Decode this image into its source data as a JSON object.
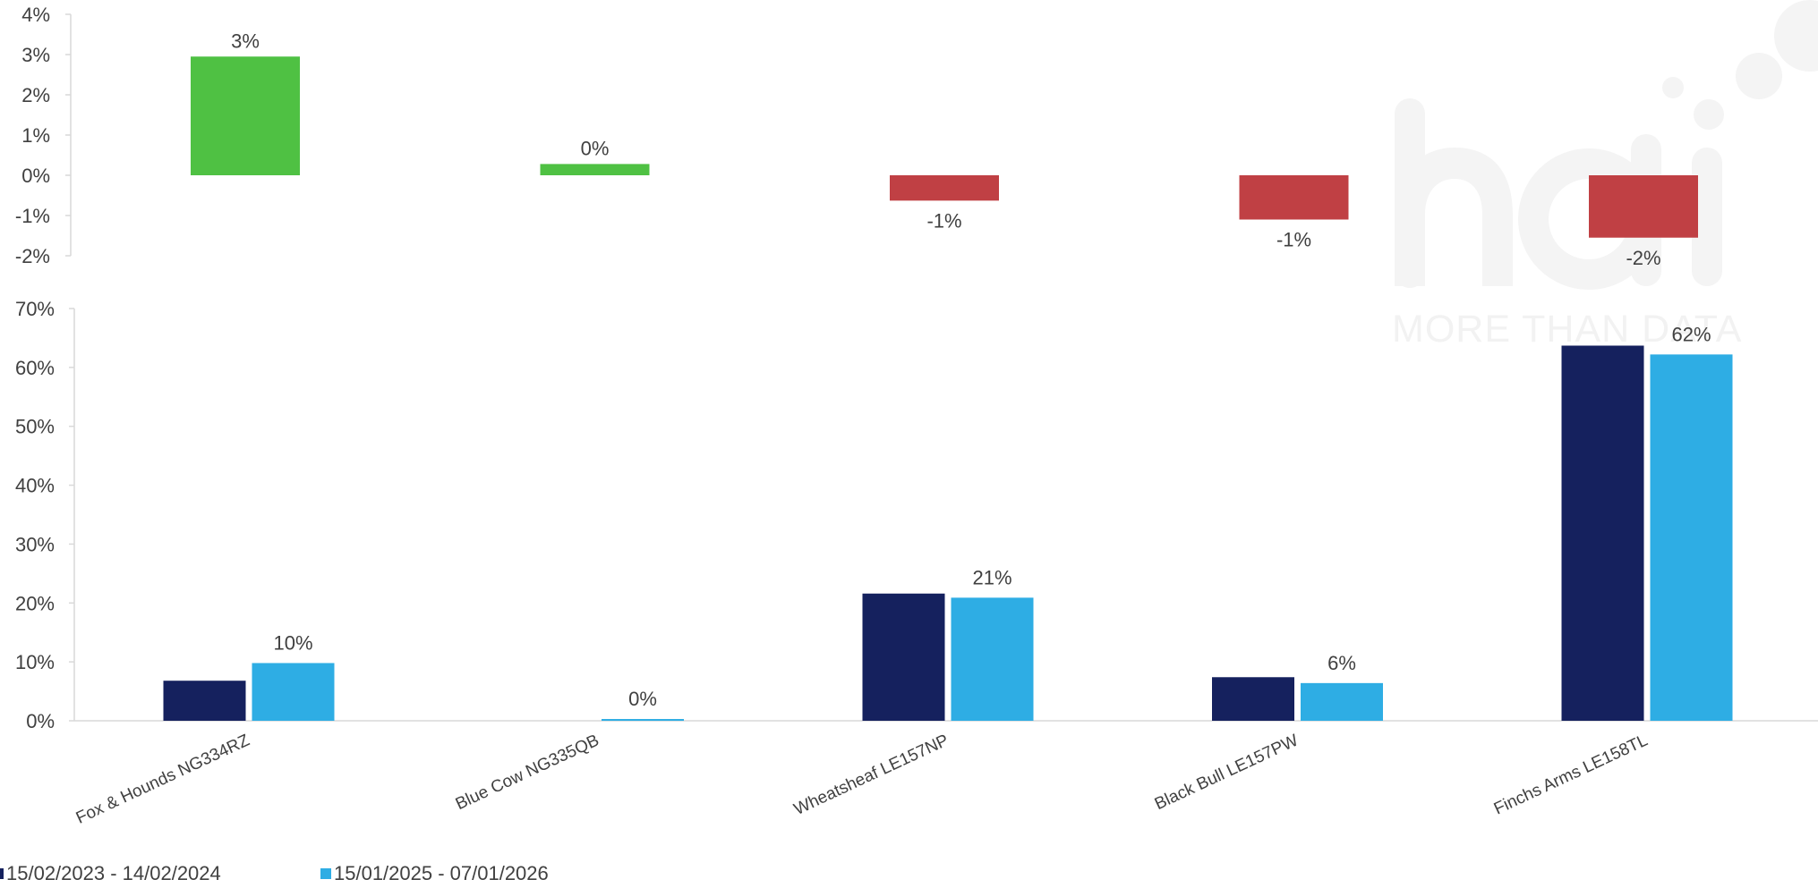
{
  "colors": {
    "positive": "#4fc143",
    "negative": "#c04044",
    "series1": "#15215e",
    "series2": "#2eade4",
    "axis": "#d9d9d9",
    "watermark": "#f4f4f4"
  },
  "watermark": {
    "logo_text": "hdi",
    "tagline": "MORE THAN DATA"
  },
  "chart_data": [
    {
      "type": "bar",
      "categories": [
        "Fox & Hounds NG334RZ",
        "Blue Cow NG335QB",
        "Wheatsheaf LE157NP",
        "Black Bull LE157PW",
        "Finchs Arms LE158TL"
      ],
      "values": [
        0.0295,
        0.0028,
        -0.0063,
        -0.011,
        -0.0155
      ],
      "data_labels": [
        "3%",
        "0%",
        "-1%",
        "-1%",
        "-2%"
      ],
      "ylim": [
        -0.02,
        0.04
      ],
      "yticks": [
        -0.02,
        -0.01,
        0,
        0.01,
        0.02,
        0.03,
        0.04
      ],
      "ytick_labels": [
        "-2%",
        "-1%",
        "0%",
        "1%",
        "2%",
        "3%",
        "4%"
      ]
    },
    {
      "type": "bar",
      "categories": [
        "Fox & Hounds NG334RZ",
        "Blue Cow NG335QB",
        "Wheatsheaf LE157NP",
        "Black Bull LE157PW",
        "Finchs Arms LE158TL"
      ],
      "series": [
        {
          "name": "15/02/2023 - 14/02/2024",
          "values": [
            0.068,
            0.0,
            0.216,
            0.074,
            0.637
          ]
        },
        {
          "name": "15/01/2025 - 07/01/2026",
          "values": [
            0.098,
            0.003,
            0.209,
            0.064,
            0.622
          ]
        }
      ],
      "data_labels": [
        "10%",
        "0%",
        "21%",
        "6%",
        "62%"
      ],
      "ylim": [
        0,
        0.7
      ],
      "yticks": [
        0,
        0.1,
        0.2,
        0.3,
        0.4,
        0.5,
        0.6,
        0.7
      ],
      "ytick_labels": [
        "0%",
        "10%",
        "20%",
        "30%",
        "40%",
        "50%",
        "60%",
        "70%"
      ],
      "legend_position": "bottom-left"
    }
  ]
}
